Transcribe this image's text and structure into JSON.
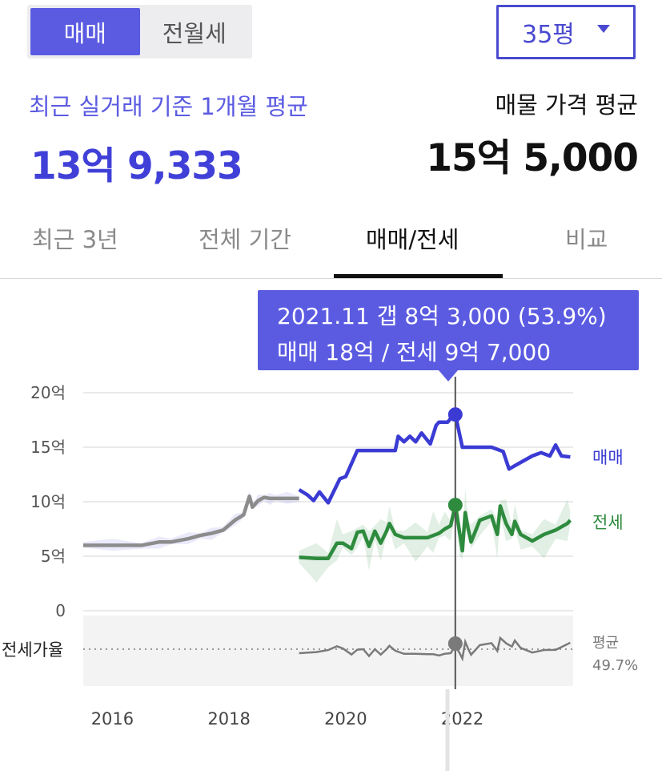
{
  "toggle": {
    "sale_label": "매매",
    "rent_label": "전월세",
    "active": "sale"
  },
  "area_select": {
    "value": "35평"
  },
  "summary": {
    "recent_label": "최근 실거래 기준 1개월 평균",
    "recent_value": "13억 9,333",
    "listing_label": "매물 가격 평균",
    "listing_value": "15억 5,000"
  },
  "tabs": [
    {
      "label": "최근 3년"
    },
    {
      "label": "전체 기간"
    },
    {
      "label": "매매/전세"
    },
    {
      "label": "비교"
    }
  ],
  "active_tab": 2,
  "tooltip": {
    "line1": "2021.11  갭 8억 3,000 (53.9%)",
    "line2": "매매 18억 / 전세 9억 7,000"
  },
  "colors": {
    "accent": "#5b5be2",
    "sale": "#3b3bd4",
    "jeonse": "#2e8b3e",
    "history": "#8c8c8c",
    "ratio": "#777777"
  },
  "chart_data": {
    "type": "line",
    "y_unit": "억",
    "y_ticks": [
      "20억",
      "15억",
      "10억",
      "5억",
      "0"
    ],
    "ylim": [
      0,
      20
    ],
    "x_ticks": [
      "2016",
      "2018",
      "2020",
      "2022"
    ],
    "xlim": [
      2015.5,
      2023.9
    ],
    "series": [
      {
        "name": "",
        "x": [
          2015.5,
          2016.0,
          2016.5,
          2016.8,
          2017.0,
          2017.3,
          2017.5,
          2017.7,
          2017.9,
          2018.1,
          2018.25,
          2018.35,
          2018.4,
          2018.5,
          2018.6,
          2018.7,
          2018.8,
          2019.0,
          2019.2
        ],
        "y": [
          6.0,
          6.0,
          6.0,
          6.3,
          6.3,
          6.6,
          6.9,
          7.1,
          7.4,
          8.3,
          8.8,
          10.5,
          9.5,
          10.1,
          10.4,
          10.3,
          10.3,
          10.3,
          10.3
        ]
      },
      {
        "name": "매매",
        "x": [
          2019.2,
          2019.35,
          2019.45,
          2019.55,
          2019.7,
          2019.9,
          2020.0,
          2020.2,
          2020.4,
          2020.6,
          2020.85,
          2020.9,
          2021.0,
          2021.1,
          2021.2,
          2021.3,
          2021.45,
          2021.55,
          2021.6,
          2021.75,
          2021.85,
          2021.88,
          2022.0,
          2022.3,
          2022.5,
          2022.7,
          2022.8,
          2023.0,
          2023.2,
          2023.35,
          2023.5,
          2023.6,
          2023.7,
          2023.85
        ],
        "y": [
          11.1,
          10.6,
          10.1,
          10.9,
          9.9,
          12.1,
          12.3,
          14.7,
          14.7,
          14.7,
          14.7,
          16.0,
          15.5,
          16.0,
          15.5,
          16.3,
          15.3,
          17.0,
          17.3,
          17.3,
          18.0,
          18.0,
          15.0,
          15.0,
          15.0,
          14.6,
          13.0,
          13.6,
          14.2,
          14.5,
          14.2,
          15.2,
          14.2,
          14.1
        ]
      },
      {
        "name": "전세",
        "x": [
          2019.2,
          2019.5,
          2019.7,
          2019.85,
          2019.95,
          2020.1,
          2020.2,
          2020.3,
          2020.4,
          2020.5,
          2020.6,
          2020.7,
          2020.75,
          2020.85,
          2021.0,
          2021.2,
          2021.4,
          2021.5,
          2021.6,
          2021.7,
          2021.8,
          2021.88,
          2021.95,
          2022.0,
          2022.05,
          2022.1,
          2022.15,
          2022.3,
          2022.5,
          2022.6,
          2022.65,
          2022.75,
          2022.85,
          2022.9,
          2023.0,
          2023.2,
          2023.4,
          2023.6,
          2023.8,
          2023.85
        ],
        "y": [
          4.9,
          4.8,
          4.8,
          6.2,
          6.2,
          5.7,
          7.2,
          7.3,
          5.9,
          7.3,
          6.2,
          7.3,
          8.0,
          7.0,
          6.7,
          6.7,
          6.7,
          6.9,
          7.1,
          7.5,
          7.8,
          9.7,
          7.3,
          5.5,
          9.0,
          7.5,
          6.3,
          8.3,
          8.7,
          7.0,
          9.6,
          8.0,
          7.0,
          8.2,
          7.0,
          6.4,
          7.0,
          7.4,
          8.0,
          8.3
        ]
      }
    ],
    "ratio_row": {
      "label": "전세가율",
      "average_label": "평균",
      "average_value": "49.7%"
    },
    "selected_point": {
      "x": 2021.88,
      "sale": 18.0,
      "jeonse": 9.7
    },
    "grid": true
  }
}
